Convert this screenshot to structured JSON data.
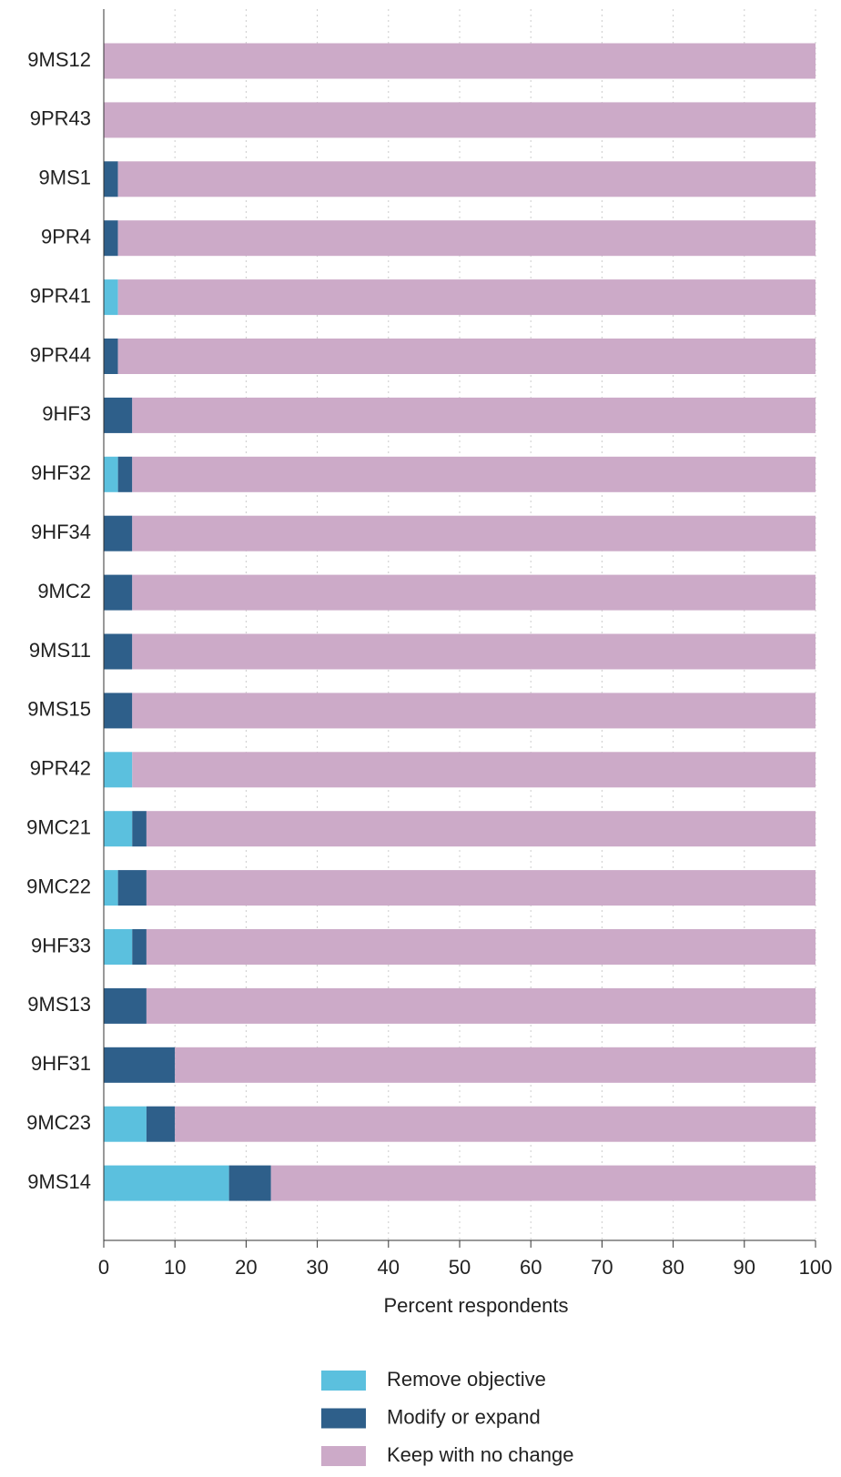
{
  "chart_data": {
    "type": "stacked-barh",
    "categories": [
      "9MS12",
      "9PR43",
      "9MS1",
      "9PR4",
      "9PR41",
      "9PR44",
      "9HF3",
      "9HF32",
      "9HF34",
      "9MC2",
      "9MS11",
      "9MS15",
      "9PR42",
      "9MC21",
      "9MC22",
      "9HF33",
      "9MS13",
      "9HF31",
      "9MC23",
      "9MS14"
    ],
    "series": [
      {
        "name": "Remove objective",
        "color": "#5bc0de",
        "values": [
          0,
          0,
          0,
          0,
          2,
          0,
          0,
          2,
          0,
          0,
          0,
          0,
          4,
          4,
          2,
          4,
          0,
          0,
          6,
          17.6
        ]
      },
      {
        "name": "Modify or expand",
        "color": "#2e5f8a",
        "values": [
          0,
          0,
          2,
          2,
          0,
          2,
          4,
          2,
          4,
          4,
          4,
          4,
          0,
          2,
          4,
          2,
          6,
          10,
          4,
          5.9
        ]
      },
      {
        "name": "Keep with no change",
        "color": "#ccaac8",
        "values": [
          100,
          100,
          98,
          98,
          98,
          98,
          96,
          96,
          96,
          96,
          96,
          96,
          96,
          94,
          94,
          94,
          94,
          90,
          90,
          76.5
        ]
      }
    ],
    "xlabel": "Percent respondents",
    "xlim": [
      0,
      100
    ],
    "xticks": [
      0,
      10,
      20,
      30,
      40,
      50,
      60,
      70,
      80,
      90,
      100
    ],
    "grid": true
  }
}
